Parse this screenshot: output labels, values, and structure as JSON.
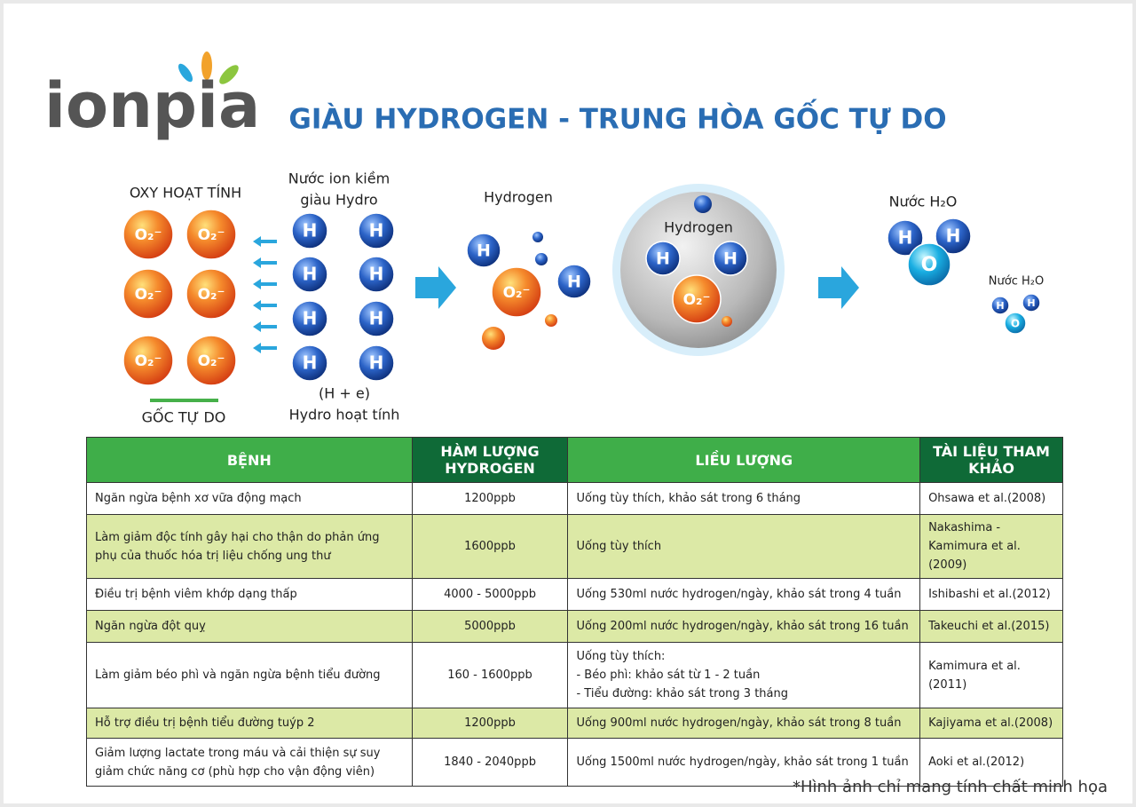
{
  "brand": "ionpia",
  "title": "GIÀU HYDROGEN - TRUNG HÒA GỐC TỰ DO",
  "diagram": {
    "active_oxygen_label": "OXY HOẠT TÍNH",
    "free_radical_label": "GỐC TỰ DO",
    "alkaline_water_line1": "Nước ion kiềm",
    "alkaline_water_line2": "giàu Hydro",
    "active_hydrogen_formula": "(H + e)",
    "active_hydrogen_label": "Hydro hoạt tính",
    "hydrogen_label_left": "Hydrogen",
    "hydrogen_label_inner": "Hydrogen",
    "water_label_large": "Nước H₂O",
    "water_label_small": "Nước H₂O",
    "atom_labels": {
      "hydrogen": "H",
      "oxygen_radical": "O₂⁻",
      "oxygen": "O"
    }
  },
  "table": {
    "headers": [
      "BỆNH",
      "HÀM LƯỢNG HYDROGEN",
      "LIỀU LƯỢNG",
      "TÀI LIỆU THAM KHẢO"
    ],
    "rows": [
      [
        "Ngăn ngừa bệnh xơ vữa động mạch",
        "1200ppb",
        "Uống tùy thích, khảo sát trong 6 tháng",
        "Ohsawa et al.(2008)"
      ],
      [
        "Làm giảm độc tính gây hại cho thận do phản ứng phụ của thuốc hóa trị liệu chống ung thư",
        "1600ppb",
        "Uống tùy thích",
        "Nakashima - Kamimura et al.(2009)"
      ],
      [
        "Điều trị bệnh viêm khớp dạng thấp",
        "4000 - 5000ppb",
        "Uống 530ml nước hydrogen/ngày, khảo sát trong 4 tuần",
        "Ishibashi et al.(2012)"
      ],
      [
        "Ngăn ngừa đột quỵ",
        "5000ppb",
        "Uống 200ml nước hydrogen/ngày, khảo sát trong 16 tuần",
        "Takeuchi et al.(2015)"
      ],
      [
        "Làm giảm béo phì và ngăn ngừa bệnh tiểu đường",
        "160 - 1600ppb",
        "Uống tùy thích:\n - Béo phì: khảo sát từ 1 - 2 tuần\n - Tiểu đường: khảo sát trong 3 tháng",
        "Kamimura et al.(2011)"
      ],
      [
        "Hỗ trợ điều trị bệnh tiểu đường tuýp 2",
        "1200ppb",
        "Uống 900ml nước hydrogen/ngày, khảo sát trong 8 tuần",
        "Kajiyama et al.(2008)"
      ],
      [
        "Giảm lượng lactate trong máu và cải thiện sự suy giảm chức năng cơ (phù hợp cho vận động viên)",
        "1840 - 2040ppb",
        "Uống 1500ml nước hydrogen/ngày, khảo sát trong 1 tuần",
        "Aoki et al.(2012)"
      ]
    ]
  },
  "footnote": "*Hình ảnh chỉ mang tính chất minh họa"
}
